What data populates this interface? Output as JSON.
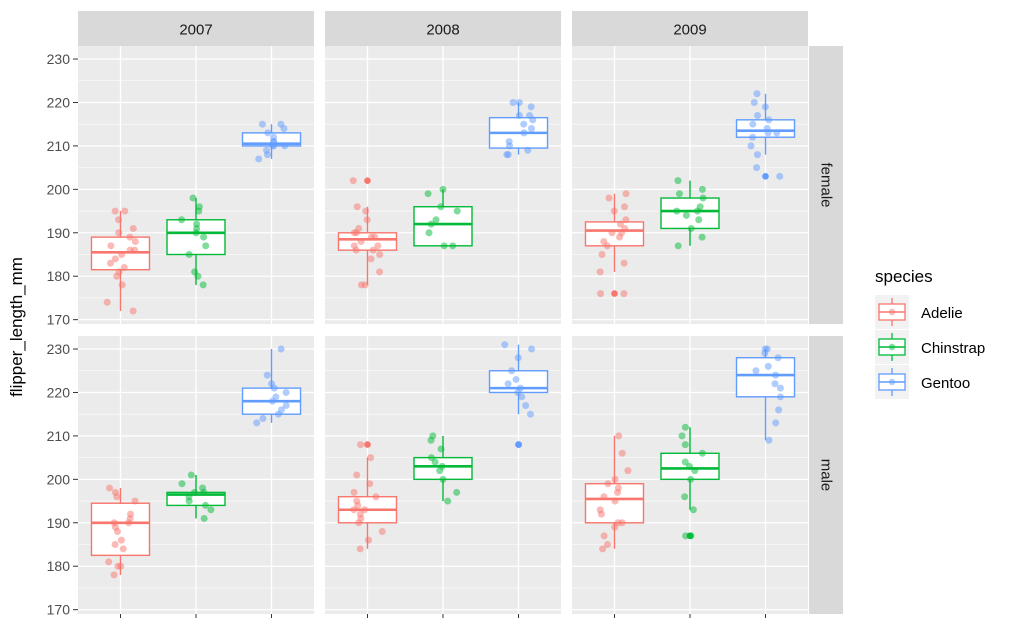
{
  "chart_data": {
    "type": "box",
    "ylabel": "flipper_length_mm",
    "ylim": [
      169,
      233
    ],
    "yticks": [
      "170",
      "180",
      "190",
      "200",
      "210",
      "220",
      "230"
    ],
    "column_facets": [
      "2007",
      "2008",
      "2009"
    ],
    "row_facets": [
      "female",
      "male"
    ],
    "legend": {
      "title": "species",
      "placement": "right",
      "entries": [
        "Adelie",
        "Chinstrap",
        "Gentoo"
      ]
    },
    "colors": {
      "Adelie": "#F8766D",
      "Chinstrap": "#00BA38",
      "Gentoo": "#619CFF"
    },
    "grid": true,
    "panels": [
      {
        "row": "female",
        "col": "2007",
        "boxes": [
          {
            "species": "Adelie",
            "min": 172,
            "q1": 181.5,
            "median": 185.5,
            "q3": 189,
            "max": 195,
            "outliers": [],
            "points": [
              172,
              174,
              178,
              180,
              181,
              182,
              183,
              184,
              185,
              186,
              186,
              187,
              188,
              189,
              190,
              191,
              193,
              195,
              195
            ]
          },
          {
            "species": "Chinstrap",
            "min": 178,
            "q1": 185,
            "median": 190,
            "q3": 193,
            "max": 198,
            "outliers": [],
            "points": [
              178,
              180,
              181,
              185,
              187,
              189,
              190,
              191,
              192,
              193,
              195,
              196,
              198
            ]
          },
          {
            "species": "Gentoo",
            "min": 207,
            "q1": 210,
            "median": 210.5,
            "q3": 213,
            "max": 215,
            "outliers": [],
            "points": [
              207,
              208,
              209,
              210,
              210,
              210,
              211,
              211,
              212,
              213,
              214,
              215,
              215
            ]
          }
        ]
      },
      {
        "row": "female",
        "col": "2008",
        "boxes": [
          {
            "species": "Adelie",
            "min": 178,
            "q1": 186,
            "median": 188.5,
            "q3": 190,
            "max": 196,
            "outliers": [
              202
            ],
            "points": [
              178,
              178,
              181,
              184,
              185,
              186,
              186,
              187,
              187,
              188,
              189,
              189,
              190,
              190,
              191,
              193,
              195,
              196,
              202
            ]
          },
          {
            "species": "Chinstrap",
            "min": 187,
            "q1": 187,
            "median": 192,
            "q3": 196,
            "max": 200,
            "outliers": [],
            "points": [
              187,
              187,
              190,
              192,
              193,
              195,
              196,
              199,
              200
            ]
          },
          {
            "species": "Gentoo",
            "min": 208,
            "q1": 209.5,
            "median": 213,
            "q3": 216.5,
            "max": 220,
            "outliers": [],
            "points": [
              208,
              208,
              209,
              210,
              211,
              213,
              214,
              215,
              216,
              217,
              217,
              219,
              220,
              220
            ]
          }
        ]
      },
      {
        "row": "female",
        "col": "2009",
        "boxes": [
          {
            "species": "Adelie",
            "min": 181,
            "q1": 187,
            "median": 190.5,
            "q3": 192.5,
            "max": 199,
            "outliers": [
              176
            ],
            "points": [
              176,
              176,
              181,
              183,
              185,
              187,
              188,
              189,
              190,
              190,
              191,
              192,
              193,
              195,
              196,
              198,
              199
            ]
          },
          {
            "species": "Chinstrap",
            "min": 187,
            "q1": 191,
            "median": 195,
            "q3": 198,
            "max": 202,
            "outliers": [],
            "points": [
              187,
              189,
              191,
              193,
              194,
              195,
              195,
              196,
              198,
              199,
              200,
              202
            ]
          },
          {
            "species": "Gentoo",
            "min": 208,
            "q1": 212,
            "median": 213.5,
            "q3": 216,
            "max": 222,
            "outliers": [
              203
            ],
            "points": [
              203,
              205,
              208,
              210,
              212,
              213,
              213,
              214,
              215,
              216,
              217,
              219,
              220,
              222
            ]
          }
        ]
      },
      {
        "row": "male",
        "col": "2007",
        "boxes": [
          {
            "species": "Adelie",
            "min": 178,
            "q1": 182.5,
            "median": 190,
            "q3": 194.5,
            "max": 198,
            "outliers": [],
            "points": [
              178,
              180,
              180,
              181,
              184,
              185,
              186,
              188,
              189,
              190,
              190,
              191,
              192,
              195,
              196,
              197,
              198
            ]
          },
          {
            "species": "Chinstrap",
            "min": 191,
            "q1": 194,
            "median": 196.5,
            "q3": 197,
            "max": 201,
            "outliers": [],
            "points": [
              191,
              193,
              194,
              195,
              196,
              197,
              197,
              198,
              199,
              201
            ]
          },
          {
            "species": "Gentoo",
            "min": 213,
            "q1": 215,
            "median": 218,
            "q3": 221,
            "max": 230,
            "outliers": [],
            "points": [
              213,
              214,
              215,
              216,
              217,
              218,
              219,
              220,
              221,
              222,
              224,
              230
            ]
          }
        ]
      },
      {
        "row": "male",
        "col": "2008",
        "boxes": [
          {
            "species": "Adelie",
            "min": 184,
            "q1": 190,
            "median": 193,
            "q3": 196,
            "max": 205,
            "outliers": [
              208
            ],
            "points": [
              184,
              186,
              188,
              190,
              191,
              192,
              193,
              193,
              194,
              195,
              196,
              197,
              199,
              201,
              205,
              208
            ]
          },
          {
            "species": "Chinstrap",
            "min": 195,
            "q1": 200,
            "median": 203,
            "q3": 205,
            "max": 210,
            "outliers": [],
            "points": [
              195,
              197,
              200,
              202,
              203,
              204,
              205,
              207,
              209,
              210
            ]
          },
          {
            "species": "Gentoo",
            "min": 215,
            "q1": 220,
            "median": 221,
            "q3": 225,
            "max": 231,
            "outliers": [
              208
            ],
            "points": [
              208,
              215,
              217,
              219,
              220,
              221,
              222,
              223,
              225,
              228,
              230,
              231
            ]
          }
        ]
      },
      {
        "row": "male",
        "col": "2009",
        "boxes": [
          {
            "species": "Adelie",
            "min": 184,
            "q1": 190,
            "median": 195.5,
            "q3": 199,
            "max": 210,
            "outliers": [],
            "points": [
              184,
              185,
              187,
              189,
              190,
              190,
              192,
              193,
              195,
              196,
              197,
              198,
              199,
              200,
              202,
              206,
              210
            ]
          },
          {
            "species": "Chinstrap",
            "min": 193,
            "q1": 200,
            "median": 202.5,
            "q3": 206,
            "max": 212,
            "outliers": [
              187
            ],
            "points": [
              187,
              187,
              193,
              196,
              200,
              202,
              203,
              204,
              206,
              208,
              210,
              212
            ]
          },
          {
            "species": "Gentoo",
            "min": 209,
            "q1": 219,
            "median": 224,
            "q3": 228,
            "max": 230,
            "outliers": [],
            "points": [
              209,
              213,
              216,
              219,
              221,
              222,
              224,
              225,
              226,
              228,
              229,
              230,
              230
            ]
          }
        ]
      }
    ]
  }
}
